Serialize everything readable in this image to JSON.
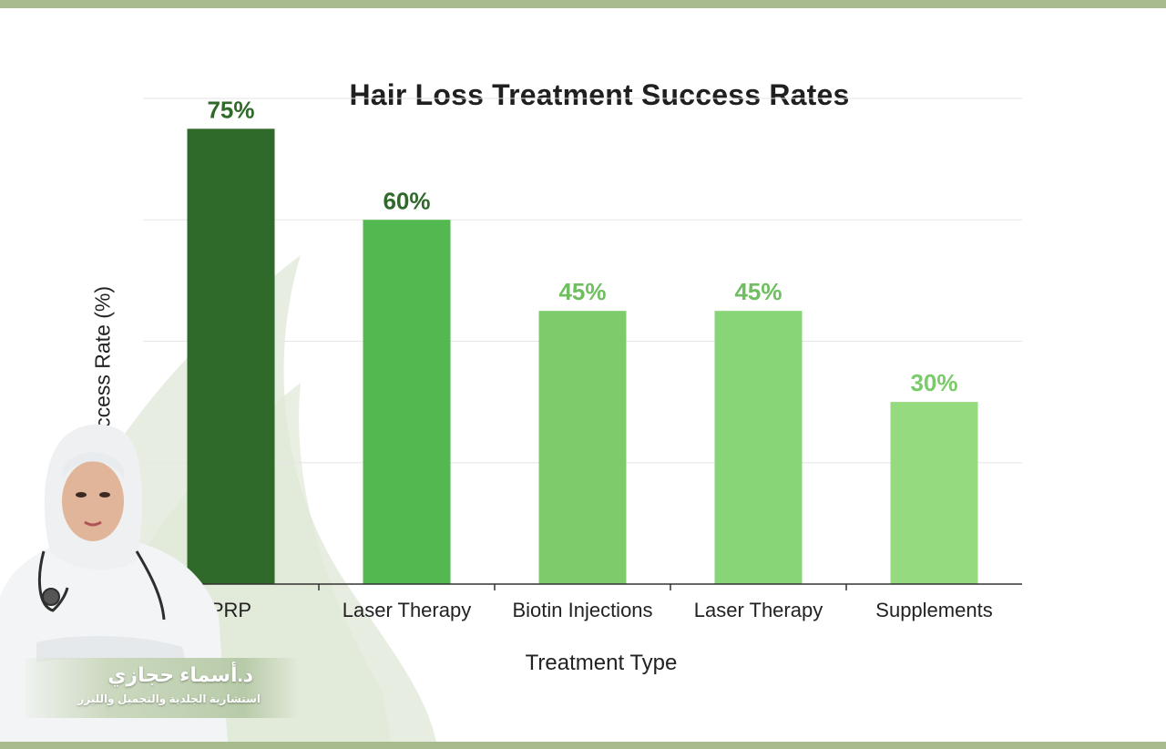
{
  "chart_data": {
    "type": "bar",
    "title": "Hair Loss Treatment Success Rates",
    "xlabel": "Treatment Type",
    "ylabel": "Success Rate (%)",
    "ylim": [
      0,
      80
    ],
    "grid": true,
    "categories": [
      "PRP",
      "Laser Therapy",
      "Biotin Injections",
      "Laser Therapy",
      "Supplements"
    ],
    "values": [
      75,
      60,
      45,
      45,
      30
    ],
    "data_labels": [
      "75%",
      "60%",
      "45%",
      "45%",
      "30%"
    ],
    "bar_colors": [
      "#2f6a2a",
      "#52b84f",
      "#7ccc6c",
      "#88d577",
      "#95da7f"
    ],
    "label_colors": [
      "#2f6a2a",
      "#2f6a2a",
      "#6fbe60",
      "#6fbe60",
      "#7acb6a"
    ]
  },
  "badge": {
    "name": "د.أسماء حجازي",
    "subtitle": "استشارية الجلدية والتجميل والليزر"
  },
  "colors": {
    "frame": "#a7bb8f",
    "leaf": "#e4ecdd"
  }
}
